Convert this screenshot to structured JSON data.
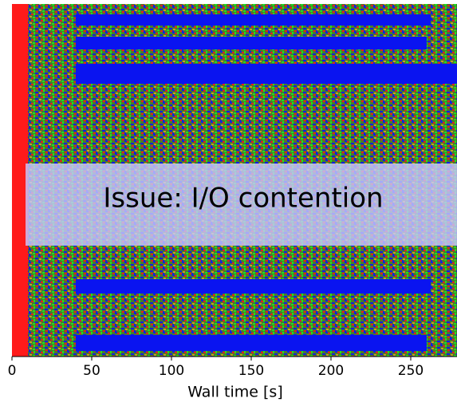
{
  "chart_data": {
    "type": "timeline",
    "xlabel": "Wall time [s]",
    "annotation": "Issue: I/O contention",
    "xlim": [
      0,
      279
    ],
    "xticks": [
      0,
      50,
      100,
      150,
      200,
      250
    ]
  }
}
